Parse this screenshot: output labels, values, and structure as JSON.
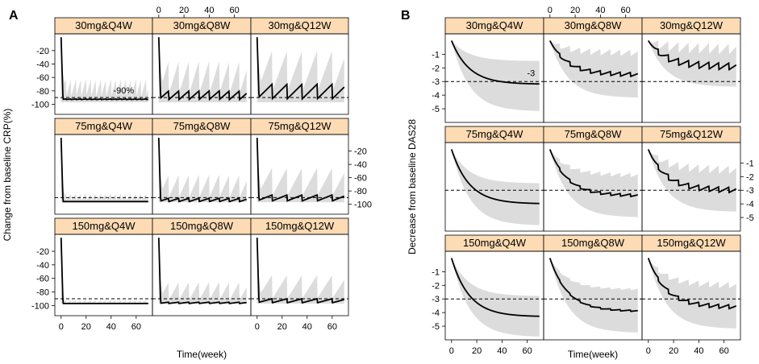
{
  "colors": {
    "strip": "#fddbb4",
    "band": "#dcdcdc",
    "line": "#000000"
  },
  "chart_data": [
    {
      "id": "A",
      "type": "line",
      "panel_label": "A",
      "ylabel": "Change from baseline CRP(%)",
      "xlabel": "Time(week)",
      "xlim": [
        -5,
        73
      ],
      "ylim": [
        -115,
        5
      ],
      "xticks": [
        0,
        20,
        40,
        60
      ],
      "yticks": [
        -20,
        -40,
        -60,
        -80,
        -100
      ],
      "reference_line": -90,
      "annotation": {
        "text": "-90%",
        "panel": 0,
        "x": 50,
        "y": -84
      },
      "panels": [
        {
          "title": "30mg&Q4W",
          "dose": 30,
          "interval": 4,
          "steady": -92,
          "upper": -62,
          "trough": -93,
          "early_peak_upper": -30
        },
        {
          "title": "30mg&Q8W",
          "dose": 30,
          "interval": 8,
          "steady": -80,
          "upper": -35,
          "trough": -93,
          "early_peak_upper": -10
        },
        {
          "title": "30mg&Q12W",
          "dose": 30,
          "interval": 12,
          "steady": -70,
          "upper": -20,
          "trough": -92,
          "early_peak_upper": -5
        },
        {
          "title": "75mg&Q4W",
          "dose": 75,
          "interval": 4,
          "steady": -96,
          "upper": -84,
          "trough": -96,
          "early_peak_upper": -50
        },
        {
          "title": "75mg&Q8W",
          "dose": 75,
          "interval": 8,
          "steady": -91,
          "upper": -55,
          "trough": -96,
          "early_peak_upper": -30
        },
        {
          "title": "75mg&Q12W",
          "dose": 75,
          "interval": 12,
          "steady": -86,
          "upper": -45,
          "trough": -95,
          "early_peak_upper": -20
        },
        {
          "title": "150mg&Q4W",
          "dose": 150,
          "interval": 4,
          "steady": -97,
          "upper": -92,
          "trough": -97,
          "early_peak_upper": -75
        },
        {
          "title": "150mg&Q8W",
          "dose": 150,
          "interval": 8,
          "steady": -95,
          "upper": -65,
          "trough": -97,
          "early_peak_upper": -40
        },
        {
          "title": "150mg&Q12W",
          "dose": 150,
          "interval": 12,
          "steady": -90,
          "upper": -55,
          "trough": -96,
          "early_peak_upper": -30
        }
      ]
    },
    {
      "id": "B",
      "type": "line",
      "panel_label": "B",
      "ylabel": "Decrease from baseline DAS28",
      "xlabel": "Time(week)",
      "xlim": [
        -5,
        73
      ],
      "ylim": [
        -6,
        0.5
      ],
      "xticks": [
        0,
        20,
        40,
        60
      ],
      "yticks": [
        -1,
        -2,
        -3,
        -4,
        -5
      ],
      "reference_line": -3,
      "annotation": {
        "text": "-3",
        "panel": 0,
        "x": 63,
        "y": -2.6
      },
      "panels": [
        {
          "title": "30mg&Q4W",
          "final": -3.2,
          "upper": -1.5,
          "lower": -5.2,
          "osc": 0.0
        },
        {
          "title": "30mg&Q8W",
          "final": -2.5,
          "upper": -0.9,
          "lower": -4.2,
          "osc": 0.15
        },
        {
          "title": "30mg&Q12W",
          "final": -1.9,
          "upper": -0.6,
          "lower": -3.4,
          "osc": 0.25
        },
        {
          "title": "75mg&Q4W",
          "final": -4.0,
          "upper": -2.5,
          "lower": -5.6,
          "osc": 0.0
        },
        {
          "title": "75mg&Q8W",
          "final": -3.4,
          "upper": -1.9,
          "lower": -5.0,
          "osc": 0.1
        },
        {
          "title": "75mg&Q12W",
          "final": -3.0,
          "upper": -1.5,
          "lower": -4.6,
          "osc": 0.2
        },
        {
          "title": "150mg&Q4W",
          "final": -4.3,
          "upper": -2.8,
          "lower": -5.8,
          "osc": 0.0
        },
        {
          "title": "150mg&Q8W",
          "final": -3.9,
          "upper": -2.3,
          "lower": -5.5,
          "osc": 0.05
        },
        {
          "title": "150mg&Q12W",
          "final": -3.6,
          "upper": -2.0,
          "lower": -5.2,
          "osc": 0.15
        }
      ]
    }
  ]
}
